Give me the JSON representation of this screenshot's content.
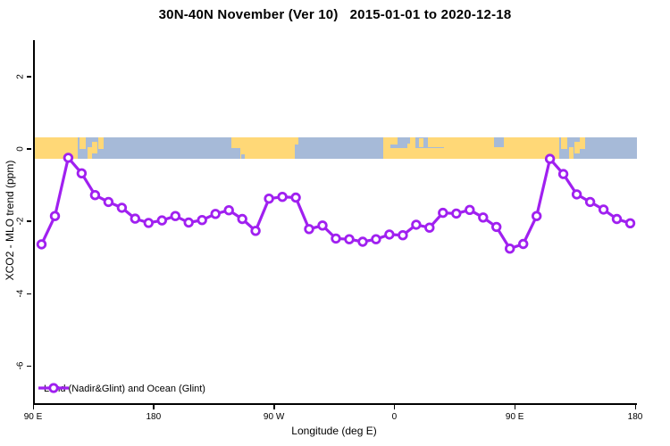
{
  "title": "30N-40N November (Ver 10)   2015-01-01 to 2020-12-18",
  "chart_data": {
    "type": "line",
    "title": "30N-40N November (Ver 10)   2015-01-01 to 2020-12-18",
    "xlabel": "Longitude (deg E)",
    "ylabel": "XCO2 - MLO trend (ppm)",
    "x_range": [
      90,
      540
    ],
    "y_range": [
      -7.03,
      3.0
    ],
    "grid": false,
    "x_ticks": [
      {
        "value": 90,
        "label": "90 E"
      },
      {
        "value": 180,
        "label": "180"
      },
      {
        "value": 270,
        "label": "90 W"
      },
      {
        "value": 360,
        "label": "0"
      },
      {
        "value": 450,
        "label": "90 E"
      },
      {
        "value": 540,
        "label": "180"
      }
    ],
    "y_ticks": [
      {
        "value": 2,
        "label": "2"
      },
      {
        "value": 0,
        "label": "0"
      },
      {
        "value": -2,
        "label": "-2"
      },
      {
        "value": -4,
        "label": "-4"
      },
      {
        "value": -6,
        "label": "-6"
      }
    ],
    "legend": {
      "label": "Land (Nadir&Glint) and Ocean (Glint)",
      "position": "bottom-left",
      "marker": "open-circle-on-line"
    },
    "series": [
      {
        "name": "Land (Nadir&Glint) and Ocean (Glint)",
        "color": "#A020F0",
        "marker": "open-circle",
        "x": [
          95,
          105,
          115,
          125,
          135,
          145,
          155,
          165,
          175,
          185,
          195,
          205,
          215,
          225,
          235,
          245,
          255,
          265,
          275,
          285,
          295,
          305,
          315,
          325,
          335,
          345,
          355,
          365,
          375,
          385,
          395,
          405,
          415,
          425,
          435,
          445,
          455,
          465,
          475,
          485,
          495,
          505,
          515,
          525,
          535
        ],
        "y": [
          -2.64,
          -1.86,
          -0.25,
          -0.68,
          -1.28,
          -1.47,
          -1.63,
          -1.93,
          -2.05,
          -1.98,
          -1.86,
          -2.04,
          -1.97,
          -1.8,
          -1.7,
          -1.94,
          -2.27,
          -1.38,
          -1.33,
          -1.35,
          -2.22,
          -2.12,
          -2.48,
          -2.5,
          -2.57,
          -2.5,
          -2.37,
          -2.39,
          -2.1,
          -2.18,
          -1.77,
          -1.79,
          -1.69,
          -1.9,
          -2.16,
          -2.76,
          -2.63,
          -1.86,
          -0.28,
          -0.7,
          -1.26,
          -1.47,
          -1.68,
          -1.94,
          -2.06
        ]
      }
    ],
    "map_band": {
      "description": "world coastline strip for latitude band 30N-40N drawn across value 0",
      "value_top": 0.32,
      "value_bottom": -0.28,
      "ocean_color": "#A6BAD8",
      "land_color": "#FFD877",
      "land": [
        {
          "from": 90,
          "to": 122,
          "top": 0,
          "bottom": 1
        },
        {
          "from": 123.5,
          "to": 128,
          "top": 0,
          "bottom": 0.55
        },
        {
          "from": 129.5,
          "to": 132.5,
          "top": 0.45,
          "bottom": 1
        },
        {
          "from": 133,
          "to": 137,
          "top": 0.2,
          "bottom": 0.75
        },
        {
          "from": 137.5,
          "to": 141.5,
          "top": 0,
          "bottom": 0.55
        },
        {
          "from": 237,
          "to": 243.5,
          "top": 0,
          "bottom": 0.5
        },
        {
          "from": 243.5,
          "to": 284.5,
          "top": 0,
          "bottom": 1
        },
        {
          "from": 284.5,
          "to": 287,
          "top": 0,
          "bottom": 0.35
        },
        {
          "from": 350.5,
          "to": 361,
          "top": 0,
          "bottom": 1
        },
        {
          "from": 360,
          "to": 396.5,
          "top": 0.5,
          "bottom": 1
        },
        {
          "from": 368.5,
          "to": 371.5,
          "top": 0.3,
          "bottom": 0.5
        },
        {
          "from": 370.5,
          "to": 374.5,
          "top": 0,
          "bottom": 0.5
        },
        {
          "from": 377,
          "to": 380.5,
          "top": 0.05,
          "bottom": 0.45
        },
        {
          "from": 383.5,
          "to": 396.5,
          "top": 0,
          "bottom": 0.45
        },
        {
          "from": 396,
          "to": 482,
          "top": 0,
          "bottom": 1
        },
        {
          "from": 483.5,
          "to": 488,
          "top": 0,
          "bottom": 0.55
        },
        {
          "from": 489.5,
          "to": 492.5,
          "top": 0.45,
          "bottom": 1
        },
        {
          "from": 493,
          "to": 497,
          "top": 0.2,
          "bottom": 0.75
        },
        {
          "from": 497.5,
          "to": 501.5,
          "top": 0,
          "bottom": 0.55
        }
      ],
      "water": [
        {
          "from": 355.5,
          "to": 361,
          "top": 0.33,
          "bottom": 0.52
        },
        {
          "from": 433.5,
          "to": 440.5,
          "top": 0,
          "bottom": 0.45
        },
        {
          "from": 244.5,
          "to": 247,
          "top": 0.8,
          "bottom": 1
        }
      ]
    }
  }
}
